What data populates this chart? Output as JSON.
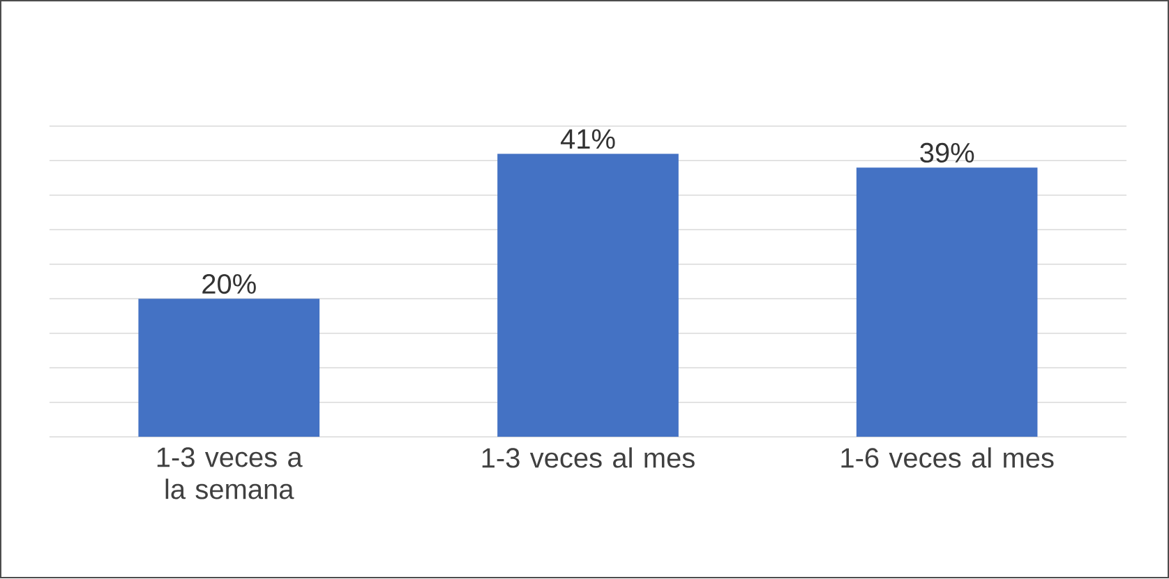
{
  "chart_data": {
    "type": "bar",
    "categories": [
      "1-3 veces a la semana",
      "1-3 veces al mes",
      "1-6 veces al mes"
    ],
    "values": [
      20,
      41,
      39
    ],
    "value_labels": [
      "20%",
      "41%",
      "39%"
    ],
    "color": "#4472c4",
    "ylim": [
      0,
      45
    ],
    "yticks": [
      {
        "value": 0,
        "label": null
      },
      {
        "value": 5,
        "label": null
      },
      {
        "value": 10,
        "label": null
      },
      {
        "value": 15,
        "label": null
      },
      {
        "value": 20,
        "label": null
      },
      {
        "value": 25,
        "label": null
      },
      {
        "value": 30,
        "label": null
      },
      {
        "value": 35,
        "label": null
      },
      {
        "value": 40,
        "label": null
      },
      {
        "value": 45,
        "label": null
      }
    ],
    "tick_labels": "x",
    "grid": "y"
  }
}
